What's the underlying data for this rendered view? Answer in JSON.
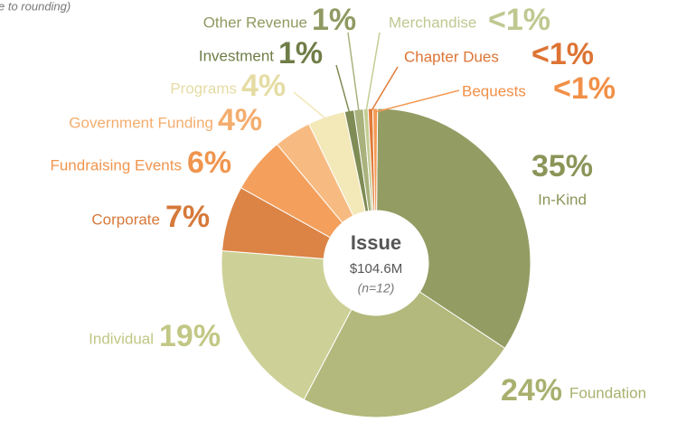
{
  "chart_data": {
    "type": "donut",
    "note": "e to rounding)",
    "center_title": "Issue",
    "center_value": "$104.6M",
    "center_note": "(n=12)",
    "categories": [
      "In-Kind",
      "Foundation",
      "Individual",
      "Corporate",
      "Fundraising Events",
      "Government Funding",
      "Programs",
      "Investment",
      "Other Revenue",
      "Merchandise",
      "Chapter Dues",
      "Bequests"
    ],
    "values": [
      35,
      24,
      19,
      7,
      6,
      4,
      4,
      1,
      1,
      0.5,
      0.5,
      0.5
    ],
    "value_labels": [
      "35%",
      "24%",
      "19%",
      "7%",
      "6%",
      "4%",
      "4%",
      "1%",
      "1%",
      "<1%",
      "<1%",
      "<1%"
    ],
    "colors": [
      "#939c63",
      "#b3b97c",
      "#cdd197",
      "#db8445",
      "#f4a05c",
      "#f7bb82",
      "#f3e8b8",
      "#7f8c55",
      "#a9b27c",
      "#c5cc94",
      "#e07b39",
      "#f59a55"
    ]
  }
}
